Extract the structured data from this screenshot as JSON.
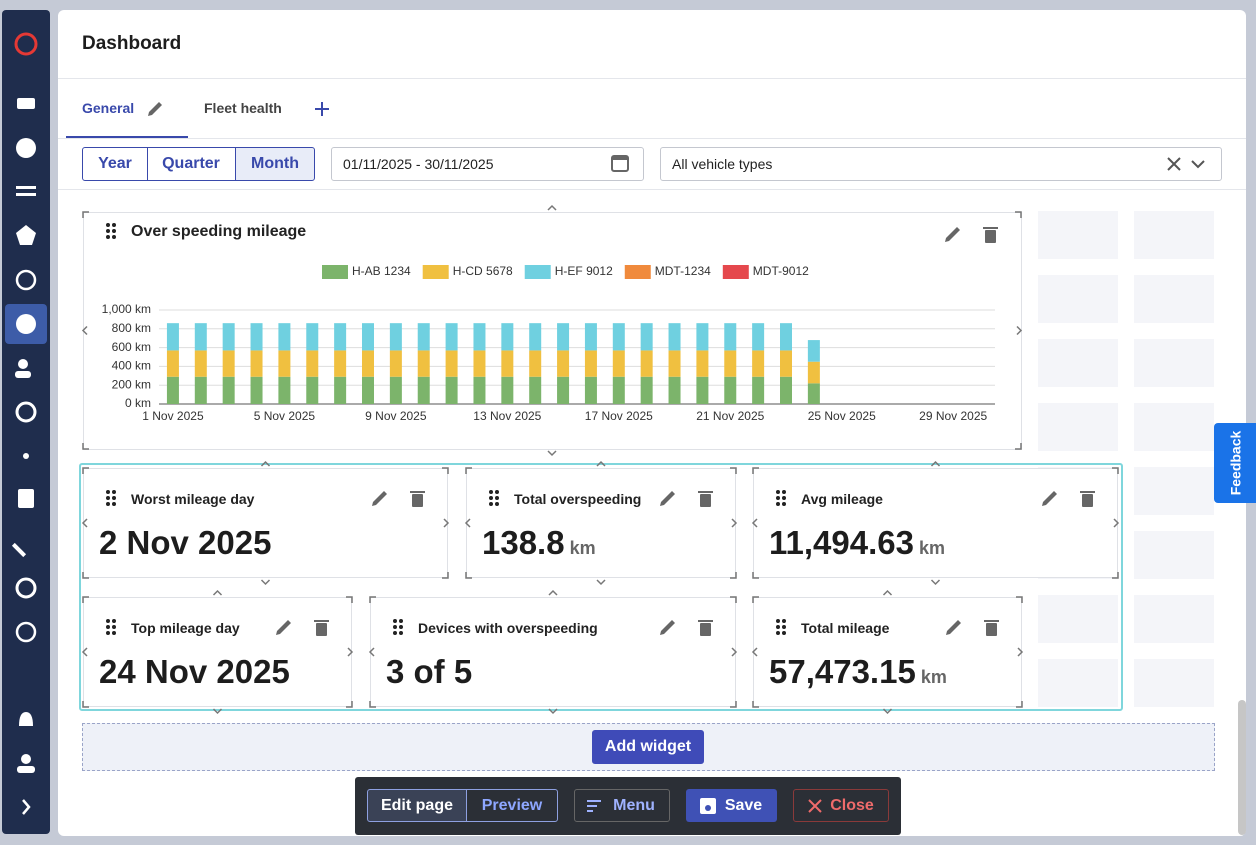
{
  "header": {
    "title": "Dashboard"
  },
  "tabs": [
    "General",
    "Fleet health"
  ],
  "filters": {
    "periods": [
      "Year",
      "Quarter",
      "Month"
    ],
    "date_range": "01/11/2025 - 30/11/2025",
    "vehicle_type": "All vehicle types"
  },
  "chart_data": {
    "type": "bar",
    "stacked": true,
    "title": "Over speeding mileage",
    "categories": [
      "1 Nov 2025",
      null,
      null,
      null,
      "5 Nov 2025",
      null,
      null,
      null,
      "9 Nov 2025",
      null,
      null,
      null,
      "13 Nov 2025",
      null,
      null,
      null,
      "17 Nov 2025",
      null,
      null,
      null,
      "21 Nov 2025",
      null,
      null,
      null,
      "25 Nov 2025",
      null,
      null,
      null,
      "29 Nov 2025",
      null
    ],
    "series": [
      {
        "name": "H-AB 1234",
        "color": "#7cb46b",
        "values": [
          290,
          290,
          290,
          290,
          290,
          290,
          290,
          290,
          290,
          290,
          290,
          290,
          290,
          290,
          290,
          290,
          290,
          290,
          290,
          290,
          290,
          290,
          290,
          220,
          null,
          null,
          null,
          null,
          null,
          null
        ]
      },
      {
        "name": "H-CD 5678",
        "color": "#f0c040",
        "values": [
          280,
          280,
          280,
          280,
          280,
          280,
          280,
          280,
          280,
          280,
          280,
          280,
          280,
          280,
          280,
          280,
          280,
          280,
          280,
          280,
          280,
          280,
          280,
          230,
          null,
          null,
          null,
          null,
          null,
          null
        ]
      },
      {
        "name": "H-EF 9012",
        "color": "#6fd0e0",
        "values": [
          290,
          290,
          290,
          290,
          290,
          290,
          290,
          290,
          290,
          290,
          290,
          290,
          290,
          290,
          290,
          290,
          290,
          290,
          290,
          290,
          290,
          290,
          290,
          230,
          null,
          null,
          null,
          null,
          null,
          null
        ]
      },
      {
        "name": "MDT-1234",
        "color": "#f08a3c",
        "values": [
          0,
          0,
          0,
          0,
          0,
          0,
          0,
          0,
          0,
          0,
          0,
          0,
          0,
          0,
          0,
          0,
          0,
          0,
          0,
          0,
          0,
          0,
          0,
          0,
          null,
          null,
          null,
          null,
          null,
          null
        ]
      },
      {
        "name": "MDT-9012",
        "color": "#e5484d",
        "values": [
          0,
          0,
          0,
          0,
          0,
          0,
          0,
          0,
          0,
          0,
          0,
          0,
          0,
          0,
          0,
          0,
          0,
          0,
          0,
          0,
          0,
          0,
          0,
          0,
          null,
          null,
          null,
          null,
          null,
          null
        ]
      }
    ],
    "ylim": [
      0,
      1000
    ],
    "yticks": [
      {
        "value": 0,
        "label": "0 km"
      },
      {
        "value": 200,
        "label": "200 km"
      },
      {
        "value": 400,
        "label": "400 km"
      },
      {
        "value": 600,
        "label": "600 km"
      },
      {
        "value": 800,
        "label": "800 km"
      },
      {
        "value": 1000,
        "label": "1,000 km"
      }
    ],
    "grid": true,
    "legend": "top"
  },
  "widgets": [
    {
      "title": "Worst mileage day",
      "value": "2 Nov 2025"
    },
    {
      "title": "Total overspeeding",
      "value": "138.8",
      "unit": "km"
    },
    {
      "title": "Avg mileage",
      "value": "11,494.63",
      "unit": "km"
    },
    {
      "title": "Top mileage day",
      "value": "24 Nov 2025"
    },
    {
      "title": "Devices with overspeeding",
      "value": "3 of 5"
    },
    {
      "title": "Total mileage",
      "value": "57,473.15",
      "unit": "km"
    }
  ],
  "add_widget": "Add widget",
  "toolbar": [
    "Edit page",
    "Preview",
    "Menu",
    "Save",
    "Close"
  ],
  "feedback": "Feedback"
}
